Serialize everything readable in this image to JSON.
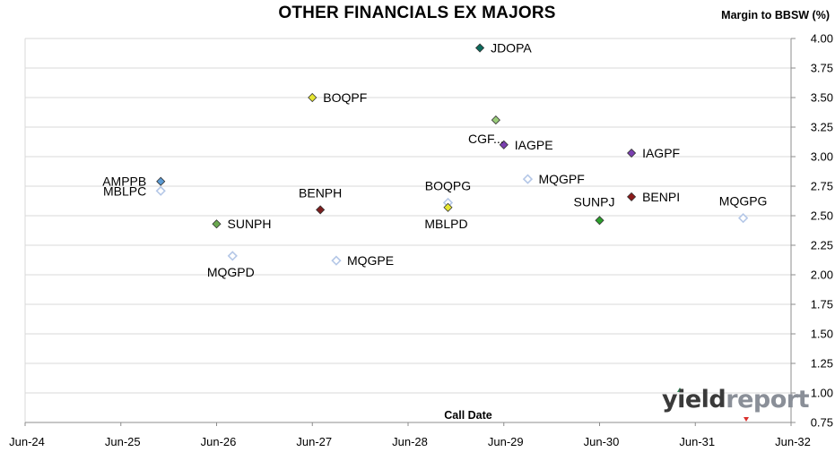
{
  "chart_data": {
    "type": "scatter",
    "title": "OTHER FINANCIALS EX MAJORS",
    "xlabel": "Call Date",
    "ylabel": "Margin to BBSW (%)",
    "x_ticks": [
      "Jun-24",
      "Jun-25",
      "Jun-26",
      "Jun-27",
      "Jun-28",
      "Jun-29",
      "Jun-30",
      "Jun-31",
      "Jun-32"
    ],
    "xlim": [
      "2024-06",
      "2032-06"
    ],
    "ylim": [
      0.75,
      4.0
    ],
    "y_ticks": [
      "0.75",
      "1.00",
      "1.25",
      "1.50",
      "1.75",
      "2.00",
      "2.25",
      "2.50",
      "2.75",
      "3.00",
      "3.25",
      "3.50",
      "3.75",
      "4.00"
    ],
    "grid": "horizontal",
    "points": [
      {
        "label": "JDOPA",
        "x": "2029-03",
        "y": 3.92,
        "color": "#0b6b5d",
        "filled": true,
        "label_pos": "right"
      },
      {
        "label": "BOQPF",
        "x": "2027-06",
        "y": 3.5,
        "color": "#e6e632",
        "filled": true,
        "label_pos": "right"
      },
      {
        "label": "CGF...",
        "x": "2029-05",
        "y": 3.31,
        "color": "#9acd7a",
        "filled": true,
        "label_pos": "below-left"
      },
      {
        "label": "IAGPE",
        "x": "2029-06",
        "y": 3.1,
        "color": "#7a3fb0",
        "filled": true,
        "label_pos": "right"
      },
      {
        "label": "IAGPF",
        "x": "2030-10",
        "y": 3.03,
        "color": "#7a3fb0",
        "filled": true,
        "label_pos": "right"
      },
      {
        "label": "MQGPF",
        "x": "2029-09",
        "y": 2.81,
        "color": "#b4c7e7",
        "filled": false,
        "label_pos": "right"
      },
      {
        "label": "AMPPB",
        "x": "2025-11",
        "y": 2.79,
        "color": "#5b9bd5",
        "filled": true,
        "label_pos": "left"
      },
      {
        "label": "MBLPC",
        "x": "2025-11",
        "y": 2.71,
        "color": "#b4c7e7",
        "filled": false,
        "label_pos": "left"
      },
      {
        "label": "BENPI",
        "x": "2030-10",
        "y": 2.66,
        "color": "#8b1a1a",
        "filled": true,
        "label_pos": "right"
      },
      {
        "label": "BOQPG",
        "x": "2028-11",
        "y": 2.61,
        "color": "#b4c7e7",
        "filled": false,
        "label_pos": "above"
      },
      {
        "label": "MBLPD",
        "x": "2028-11",
        "y": 2.57,
        "color": "#e6e632",
        "filled": true,
        "label_pos": "below"
      },
      {
        "label": "BENPH",
        "x": "2027-07",
        "y": 2.55,
        "color": "#7b1e1e",
        "filled": true,
        "label_pos": "above"
      },
      {
        "label": "SUNPJ",
        "x": "2030-06",
        "y": 2.46,
        "color": "#2ca02c",
        "filled": true,
        "label_pos": "above-left"
      },
      {
        "label": "MQGPG",
        "x": "2031-12",
        "y": 2.48,
        "color": "#b4c7e7",
        "filled": false,
        "label_pos": "above"
      },
      {
        "label": "SUNPH",
        "x": "2026-06",
        "y": 2.43,
        "color": "#6aa84f",
        "filled": true,
        "label_pos": "right"
      },
      {
        "label": "MQGPD",
        "x": "2026-08",
        "y": 2.16,
        "color": "#b4c7e7",
        "filled": false,
        "label_pos": "below"
      },
      {
        "label": "MQGPE",
        "x": "2027-09",
        "y": 2.12,
        "color": "#b4c7e7",
        "filled": false,
        "label_pos": "right"
      }
    ],
    "logo": {
      "text_a": "yield",
      "text_b": "report"
    }
  }
}
